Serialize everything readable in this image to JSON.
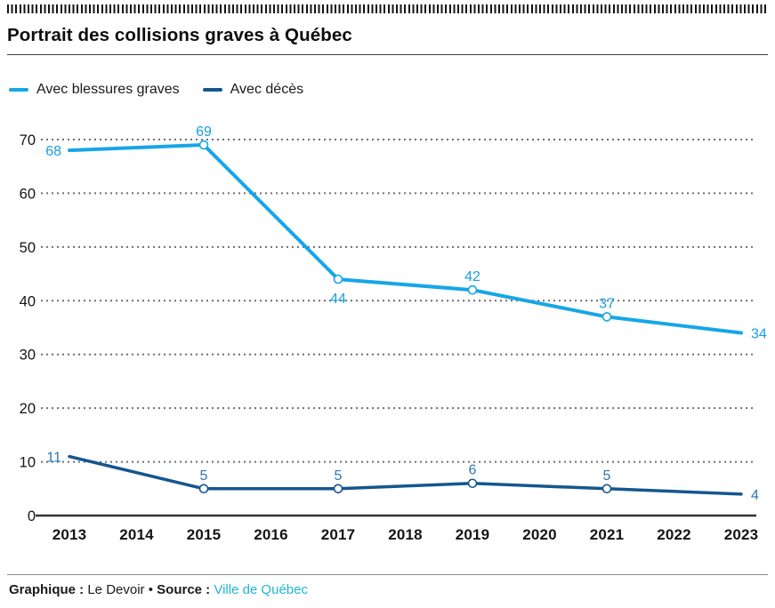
{
  "header": {
    "title": "Portrait des collisions graves à Québec"
  },
  "legend": {
    "items": [
      {
        "label": "Avec blessures graves"
      },
      {
        "label": "Avec décès"
      }
    ]
  },
  "footer": {
    "graphic_label": "Graphique :",
    "graphic_value": "Le Devoir",
    "separator": "•",
    "source_label": "Source :",
    "source_link_text": "Ville de Québec",
    "link_color": "#1db6d2"
  },
  "chart_data": {
    "type": "line",
    "title": "Portrait des collisions graves à Québec",
    "categories": [
      2013,
      2014,
      2015,
      2016,
      2017,
      2018,
      2019,
      2020,
      2021,
      2022,
      2023
    ],
    "ylim": [
      0,
      70
    ],
    "yticks": [
      0,
      10,
      20,
      30,
      40,
      50,
      60,
      70
    ],
    "grid": "dotted",
    "grid_color": "#6f6f6f",
    "axis_color": "#333333",
    "legend_position": "top",
    "series": [
      {
        "name": "Avec blessures graves",
        "color": "#16a6e6",
        "label_color": "#189de2",
        "points": [
          {
            "x": 2013,
            "y": 68,
            "label_pos": "left"
          },
          {
            "x": 2015,
            "y": 69,
            "label_pos": "above"
          },
          {
            "x": 2017,
            "y": 44,
            "label_pos": "below"
          },
          {
            "x": 2019,
            "y": 42,
            "label_pos": "above"
          },
          {
            "x": 2021,
            "y": 37,
            "label_pos": "above"
          },
          {
            "x": 2023,
            "y": 34,
            "label_pos": "right"
          }
        ]
      },
      {
        "name": "Avec décès",
        "color": "#15568f",
        "label_color": "#2a77b9",
        "points": [
          {
            "x": 2013,
            "y": 11,
            "label_pos": "left"
          },
          {
            "x": 2015,
            "y": 5,
            "label_pos": "above"
          },
          {
            "x": 2017,
            "y": 5,
            "label_pos": "above"
          },
          {
            "x": 2019,
            "y": 6,
            "label_pos": "above"
          },
          {
            "x": 2021,
            "y": 5,
            "label_pos": "above"
          },
          {
            "x": 2023,
            "y": 4,
            "label_pos": "right"
          }
        ]
      }
    ]
  }
}
